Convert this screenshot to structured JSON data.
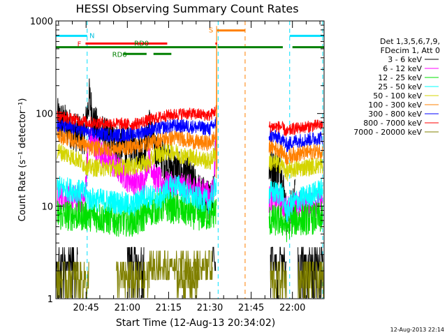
{
  "chart_data": {
    "type": "line",
    "title": "HESSI Observing Summary Count Rates",
    "xlabel": "Start Time (12-Aug-13 20:34:02)",
    "ylabel": "Count Rate (s⁻¹ detector⁻¹)",
    "yscale": "log",
    "ylim": [
      1,
      1000
    ],
    "xlim": [
      34.03,
      131.5
    ],
    "y_ticks": [
      {
        "v": 1,
        "label": "1"
      },
      {
        "v": 10,
        "label": "10"
      },
      {
        "v": 100,
        "label": "100"
      },
      {
        "v": 1000,
        "label": "1000"
      }
    ],
    "x_ticks": [
      {
        "v": 45,
        "label": "20:45"
      },
      {
        "v": 60,
        "label": "21:00"
      },
      {
        "v": 75,
        "label": "21:15"
      },
      {
        "v": 90,
        "label": "21:30"
      },
      {
        "v": 105,
        "label": "21:45"
      },
      {
        "v": 120,
        "label": "22:00"
      }
    ],
    "x_unit_note": "x values are minutes after 20:00 UT",
    "legend_header": [
      "Det 1,3,5,6,7,9,",
      "FDecim 1, Att 0"
    ],
    "series": [
      {
        "name": "3 - 6 keV",
        "color": "#000000",
        "noise": 0.1,
        "points": [
          [
            34.5,
            90
          ],
          [
            42,
            60
          ],
          [
            44.5,
            60
          ],
          [
            46.2,
            150
          ],
          [
            48,
            75
          ],
          [
            52,
            55
          ],
          [
            56,
            48
          ],
          [
            60,
            44
          ],
          [
            64,
            42
          ],
          [
            66,
            40
          ],
          [
            68,
            75
          ],
          [
            70,
            42
          ],
          [
            74,
            30
          ],
          [
            78,
            24
          ],
          [
            82,
            22
          ],
          [
            86,
            14
          ],
          [
            89,
            12
          ],
          [
            90,
            11
          ],
          [
            91.5,
            16
          ],
          [
            92,
            60
          ],
          [
            92.4,
            60
          ]
        ],
        "points2": [
          [
            111.5,
            25
          ],
          [
            114,
            25
          ],
          [
            116,
            25
          ],
          [
            118,
            7
          ],
          [
            120,
            10
          ],
          [
            121,
            13
          ]
        ]
      },
      {
        "name": "6 - 12 keV",
        "color": "#ff00ff",
        "noise": 0.07,
        "points": [
          [
            34.5,
            13
          ],
          [
            42,
            12
          ],
          [
            44.5,
            12
          ],
          [
            46,
            55
          ],
          [
            48,
            45
          ],
          [
            54,
            30
          ],
          [
            60,
            20
          ],
          [
            64,
            18
          ],
          [
            66,
            18
          ],
          [
            67.5,
            32
          ],
          [
            68.5,
            30
          ],
          [
            70,
            20
          ],
          [
            74,
            17
          ],
          [
            80,
            16
          ],
          [
            86,
            15
          ],
          [
            90,
            13
          ],
          [
            91.5,
            16
          ],
          [
            92,
            50
          ],
          [
            92.4,
            50
          ]
        ],
        "points2": [
          [
            111.5,
            12
          ],
          [
            116,
            11
          ],
          [
            118,
            9
          ],
          [
            120,
            10
          ],
          [
            131,
            11
          ]
        ]
      },
      {
        "name": "12 - 25 keV",
        "color": "#00e000",
        "noise": 0.08,
        "points": [
          [
            34.5,
            8
          ],
          [
            44.5,
            8
          ],
          [
            46,
            8
          ],
          [
            56,
            7
          ],
          [
            64,
            7
          ],
          [
            68,
            9
          ],
          [
            74,
            10
          ],
          [
            80,
            9
          ],
          [
            86,
            8
          ],
          [
            90,
            8
          ],
          [
            92.4,
            9
          ]
        ],
        "points2": [
          [
            111.5,
            7
          ],
          [
            116,
            7
          ],
          [
            118,
            6
          ],
          [
            120,
            7
          ],
          [
            131,
            7.5
          ]
        ]
      },
      {
        "name": "25 - 50 keV",
        "color": "#00ffff",
        "noise": 0.06,
        "points": [
          [
            34.5,
            16
          ],
          [
            44.5,
            14
          ],
          [
            46,
            12
          ],
          [
            56,
            11
          ],
          [
            62,
            10
          ],
          [
            66,
            13
          ],
          [
            72,
            12
          ],
          [
            74,
            15
          ],
          [
            78,
            17
          ],
          [
            82,
            13
          ],
          [
            86,
            12
          ],
          [
            90,
            11
          ],
          [
            92.4,
            18
          ]
        ],
        "points2": [
          [
            111.5,
            14
          ],
          [
            116,
            14
          ],
          [
            118,
            8.5
          ],
          [
            120,
            11
          ],
          [
            131,
            15
          ]
        ]
      },
      {
        "name": "50 - 100 keV",
        "color": "#d4d400",
        "noise": 0.045,
        "points": [
          [
            34.5,
            40
          ],
          [
            42,
            32
          ],
          [
            44.5,
            28
          ],
          [
            46,
            26
          ],
          [
            56,
            26
          ],
          [
            62,
            27
          ],
          [
            66,
            29
          ],
          [
            68,
            29
          ],
          [
            70,
            36
          ],
          [
            76,
            39
          ],
          [
            78,
            38
          ],
          [
            80,
            35
          ],
          [
            86,
            33
          ],
          [
            90,
            30
          ],
          [
            92.4,
            40
          ]
        ],
        "points2": [
          [
            111.5,
            30
          ],
          [
            116,
            28
          ],
          [
            118,
            23
          ],
          [
            120,
            25
          ],
          [
            131,
            28
          ]
        ]
      },
      {
        "name": "100 - 300 keV",
        "color": "#ff8000",
        "noise": 0.04,
        "points": [
          [
            34.5,
            58
          ],
          [
            42,
            50
          ],
          [
            44.5,
            46
          ],
          [
            46,
            42
          ],
          [
            56,
            42
          ],
          [
            62,
            44
          ],
          [
            68,
            48
          ],
          [
            74,
            54
          ],
          [
            78,
            55
          ],
          [
            82,
            52
          ],
          [
            86,
            48
          ],
          [
            90,
            48
          ],
          [
            92.4,
            58
          ]
        ],
        "points2": [
          [
            111.5,
            45
          ],
          [
            116,
            40
          ],
          [
            118,
            33
          ],
          [
            120,
            36
          ],
          [
            131,
            40
          ]
        ]
      },
      {
        "name": "300 - 800 keV",
        "color": "#0000ff",
        "noise": 0.035,
        "points": [
          [
            34.5,
            75
          ],
          [
            42,
            68
          ],
          [
            44.5,
            65
          ],
          [
            46,
            62
          ],
          [
            56,
            58
          ],
          [
            62,
            60
          ],
          [
            68,
            66
          ],
          [
            72,
            70
          ],
          [
            74,
            72
          ],
          [
            78,
            74
          ],
          [
            84,
            72
          ],
          [
            90,
            68
          ],
          [
            92.4,
            80
          ]
        ],
        "points2": [
          [
            111.5,
            58
          ],
          [
            116,
            54
          ],
          [
            118,
            45
          ],
          [
            120,
            50
          ],
          [
            131,
            55
          ]
        ]
      },
      {
        "name": "800 - 7000 keV",
        "color": "#ff0000",
        "noise": 0.03,
        "points": [
          [
            34.5,
            95
          ],
          [
            42,
            85
          ],
          [
            44.5,
            82
          ],
          [
            46,
            80
          ],
          [
            56,
            78
          ],
          [
            62,
            76
          ],
          [
            68,
            85
          ],
          [
            74,
            95
          ],
          [
            80,
            100
          ],
          [
            86,
            98
          ],
          [
            90,
            95
          ],
          [
            92.4,
            110
          ]
        ],
        "points2": [
          [
            111.5,
            72
          ],
          [
            116,
            72
          ],
          [
            118,
            62
          ],
          [
            120,
            68
          ],
          [
            131,
            76
          ]
        ]
      },
      {
        "name": "7000 - 20000 keV",
        "color": "#808000",
        "noise": 0,
        "points": [],
        "points2": []
      }
    ],
    "annotations": {
      "attenuator_intervals": [
        [
          34.03,
          45.4
        ],
        [
          119,
          131.5
        ]
      ],
      "attenuator_label": "N",
      "flare_label": "F",
      "flare_intervals": [
        [
          44.8,
          74.5
        ],
        [
          92,
          92.6
        ]
      ],
      "saa_label": "S",
      "saa_intervals": [
        [
          92.6,
          102.8
        ]
      ],
      "rd0_label": "RD0",
      "rd6_label": "RD6",
      "night_intervals": [
        [
          34.03,
          92.3
        ],
        [
          92.8,
          116.5
        ],
        [
          120,
          131.5
        ]
      ],
      "rd6_intervals": [
        [
          58.5,
          67
        ],
        [
          69.5,
          76
        ]
      ],
      "dashed_lines_cyan": [
        45.4,
        93,
        119,
        131
      ],
      "dashed_line_orange": 102.8
    },
    "timestamp": "12-Aug-2013 22:14"
  }
}
